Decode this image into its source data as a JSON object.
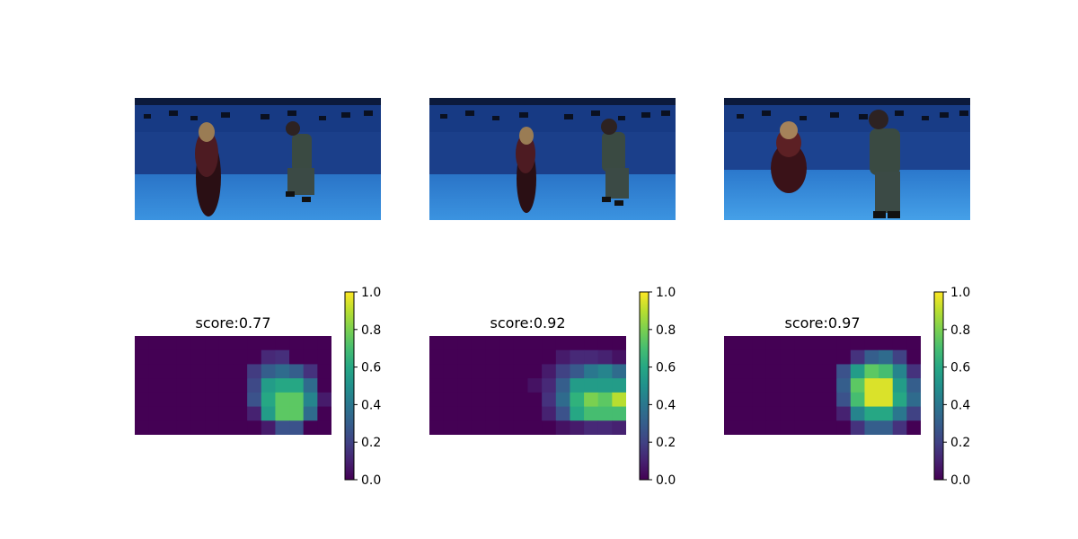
{
  "colorbar": {
    "ticks": [
      0.0,
      0.2,
      0.4,
      0.6,
      0.8,
      1.0
    ],
    "tick_labels": [
      "0.0",
      "0.2",
      "0.4",
      "0.6",
      "0.8",
      "1.0"
    ]
  },
  "panels": [
    {
      "photo_description": "camera frame 1",
      "score_label": "score:0.77"
    },
    {
      "photo_description": "camera frame 2",
      "score_label": "score:0.92"
    },
    {
      "photo_description": "camera frame 3",
      "score_label": "score:0.97"
    }
  ],
  "chart_data": [
    {
      "type": "heatmap",
      "title": "score:0.77",
      "colormap": "viridis",
      "vmin": 0,
      "vmax": 1,
      "rows": 7,
      "cols": 14,
      "values": [
        [
          0,
          0,
          0,
          0,
          0,
          0,
          0,
          0,
          0,
          0,
          0,
          0,
          0,
          0
        ],
        [
          0,
          0,
          0,
          0,
          0,
          0,
          0,
          0,
          0,
          0.12,
          0.14,
          0,
          0,
          0
        ],
        [
          0,
          0,
          0,
          0,
          0,
          0,
          0,
          0,
          0.18,
          0.3,
          0.35,
          0.3,
          0.15,
          0
        ],
        [
          0,
          0,
          0,
          0,
          0,
          0,
          0,
          0,
          0.22,
          0.55,
          0.6,
          0.6,
          0.35,
          0
        ],
        [
          0,
          0,
          0,
          0,
          0,
          0,
          0,
          0,
          0.25,
          0.6,
          0.75,
          0.75,
          0.45,
          0.08
        ],
        [
          0,
          0,
          0,
          0,
          0,
          0,
          0,
          0,
          0.1,
          0.55,
          0.75,
          0.75,
          0.35,
          0
        ],
        [
          0,
          0,
          0,
          0,
          0,
          0,
          0,
          0,
          0,
          0.08,
          0.25,
          0.25,
          0,
          0
        ]
      ]
    },
    {
      "type": "heatmap",
      "title": "score:0.92",
      "colormap": "viridis",
      "vmin": 0,
      "vmax": 1,
      "rows": 7,
      "cols": 14,
      "values": [
        [
          0,
          0,
          0,
          0,
          0,
          0,
          0,
          0,
          0,
          0,
          0,
          0,
          0,
          0
        ],
        [
          0,
          0,
          0,
          0,
          0,
          0,
          0,
          0,
          0,
          0.08,
          0.12,
          0.12,
          0.1,
          0.05
        ],
        [
          0,
          0,
          0,
          0,
          0,
          0,
          0,
          0,
          0.08,
          0.2,
          0.28,
          0.4,
          0.45,
          0.35
        ],
        [
          0,
          0,
          0,
          0,
          0,
          0,
          0,
          0.05,
          0.12,
          0.3,
          0.55,
          0.55,
          0.55,
          0.55
        ],
        [
          0,
          0,
          0,
          0,
          0,
          0,
          0,
          0,
          0.15,
          0.35,
          0.65,
          0.8,
          0.75,
          0.9
        ],
        [
          0,
          0,
          0,
          0,
          0,
          0,
          0,
          0,
          0.1,
          0.25,
          0.6,
          0.7,
          0.7,
          0.7
        ],
        [
          0,
          0,
          0,
          0,
          0,
          0,
          0,
          0,
          0,
          0.05,
          0.08,
          0.12,
          0.12,
          0.1
        ]
      ]
    },
    {
      "type": "heatmap",
      "title": "score:0.97",
      "colormap": "viridis",
      "vmin": 0,
      "vmax": 1,
      "rows": 7,
      "cols": 14,
      "values": [
        [
          0,
          0,
          0,
          0,
          0,
          0,
          0,
          0,
          0,
          0,
          0,
          0,
          0,
          0
        ],
        [
          0,
          0,
          0,
          0,
          0,
          0,
          0,
          0,
          0,
          0.15,
          0.3,
          0.35,
          0.2,
          0
        ],
        [
          0,
          0,
          0,
          0,
          0,
          0,
          0,
          0,
          0.25,
          0.55,
          0.75,
          0.7,
          0.45,
          0.15
        ],
        [
          0,
          0,
          0,
          0,
          0,
          0,
          0,
          0,
          0.3,
          0.75,
          0.95,
          0.95,
          0.55,
          0.3
        ],
        [
          0,
          0,
          0,
          0,
          0,
          0,
          0,
          0,
          0.25,
          0.7,
          0.95,
          0.95,
          0.6,
          0.35
        ],
        [
          0,
          0,
          0,
          0,
          0,
          0,
          0,
          0,
          0.1,
          0.45,
          0.6,
          0.6,
          0.4,
          0.2
        ],
        [
          0,
          0,
          0,
          0,
          0,
          0,
          0,
          0,
          0,
          0.15,
          0.3,
          0.3,
          0.15,
          0
        ]
      ]
    }
  ]
}
